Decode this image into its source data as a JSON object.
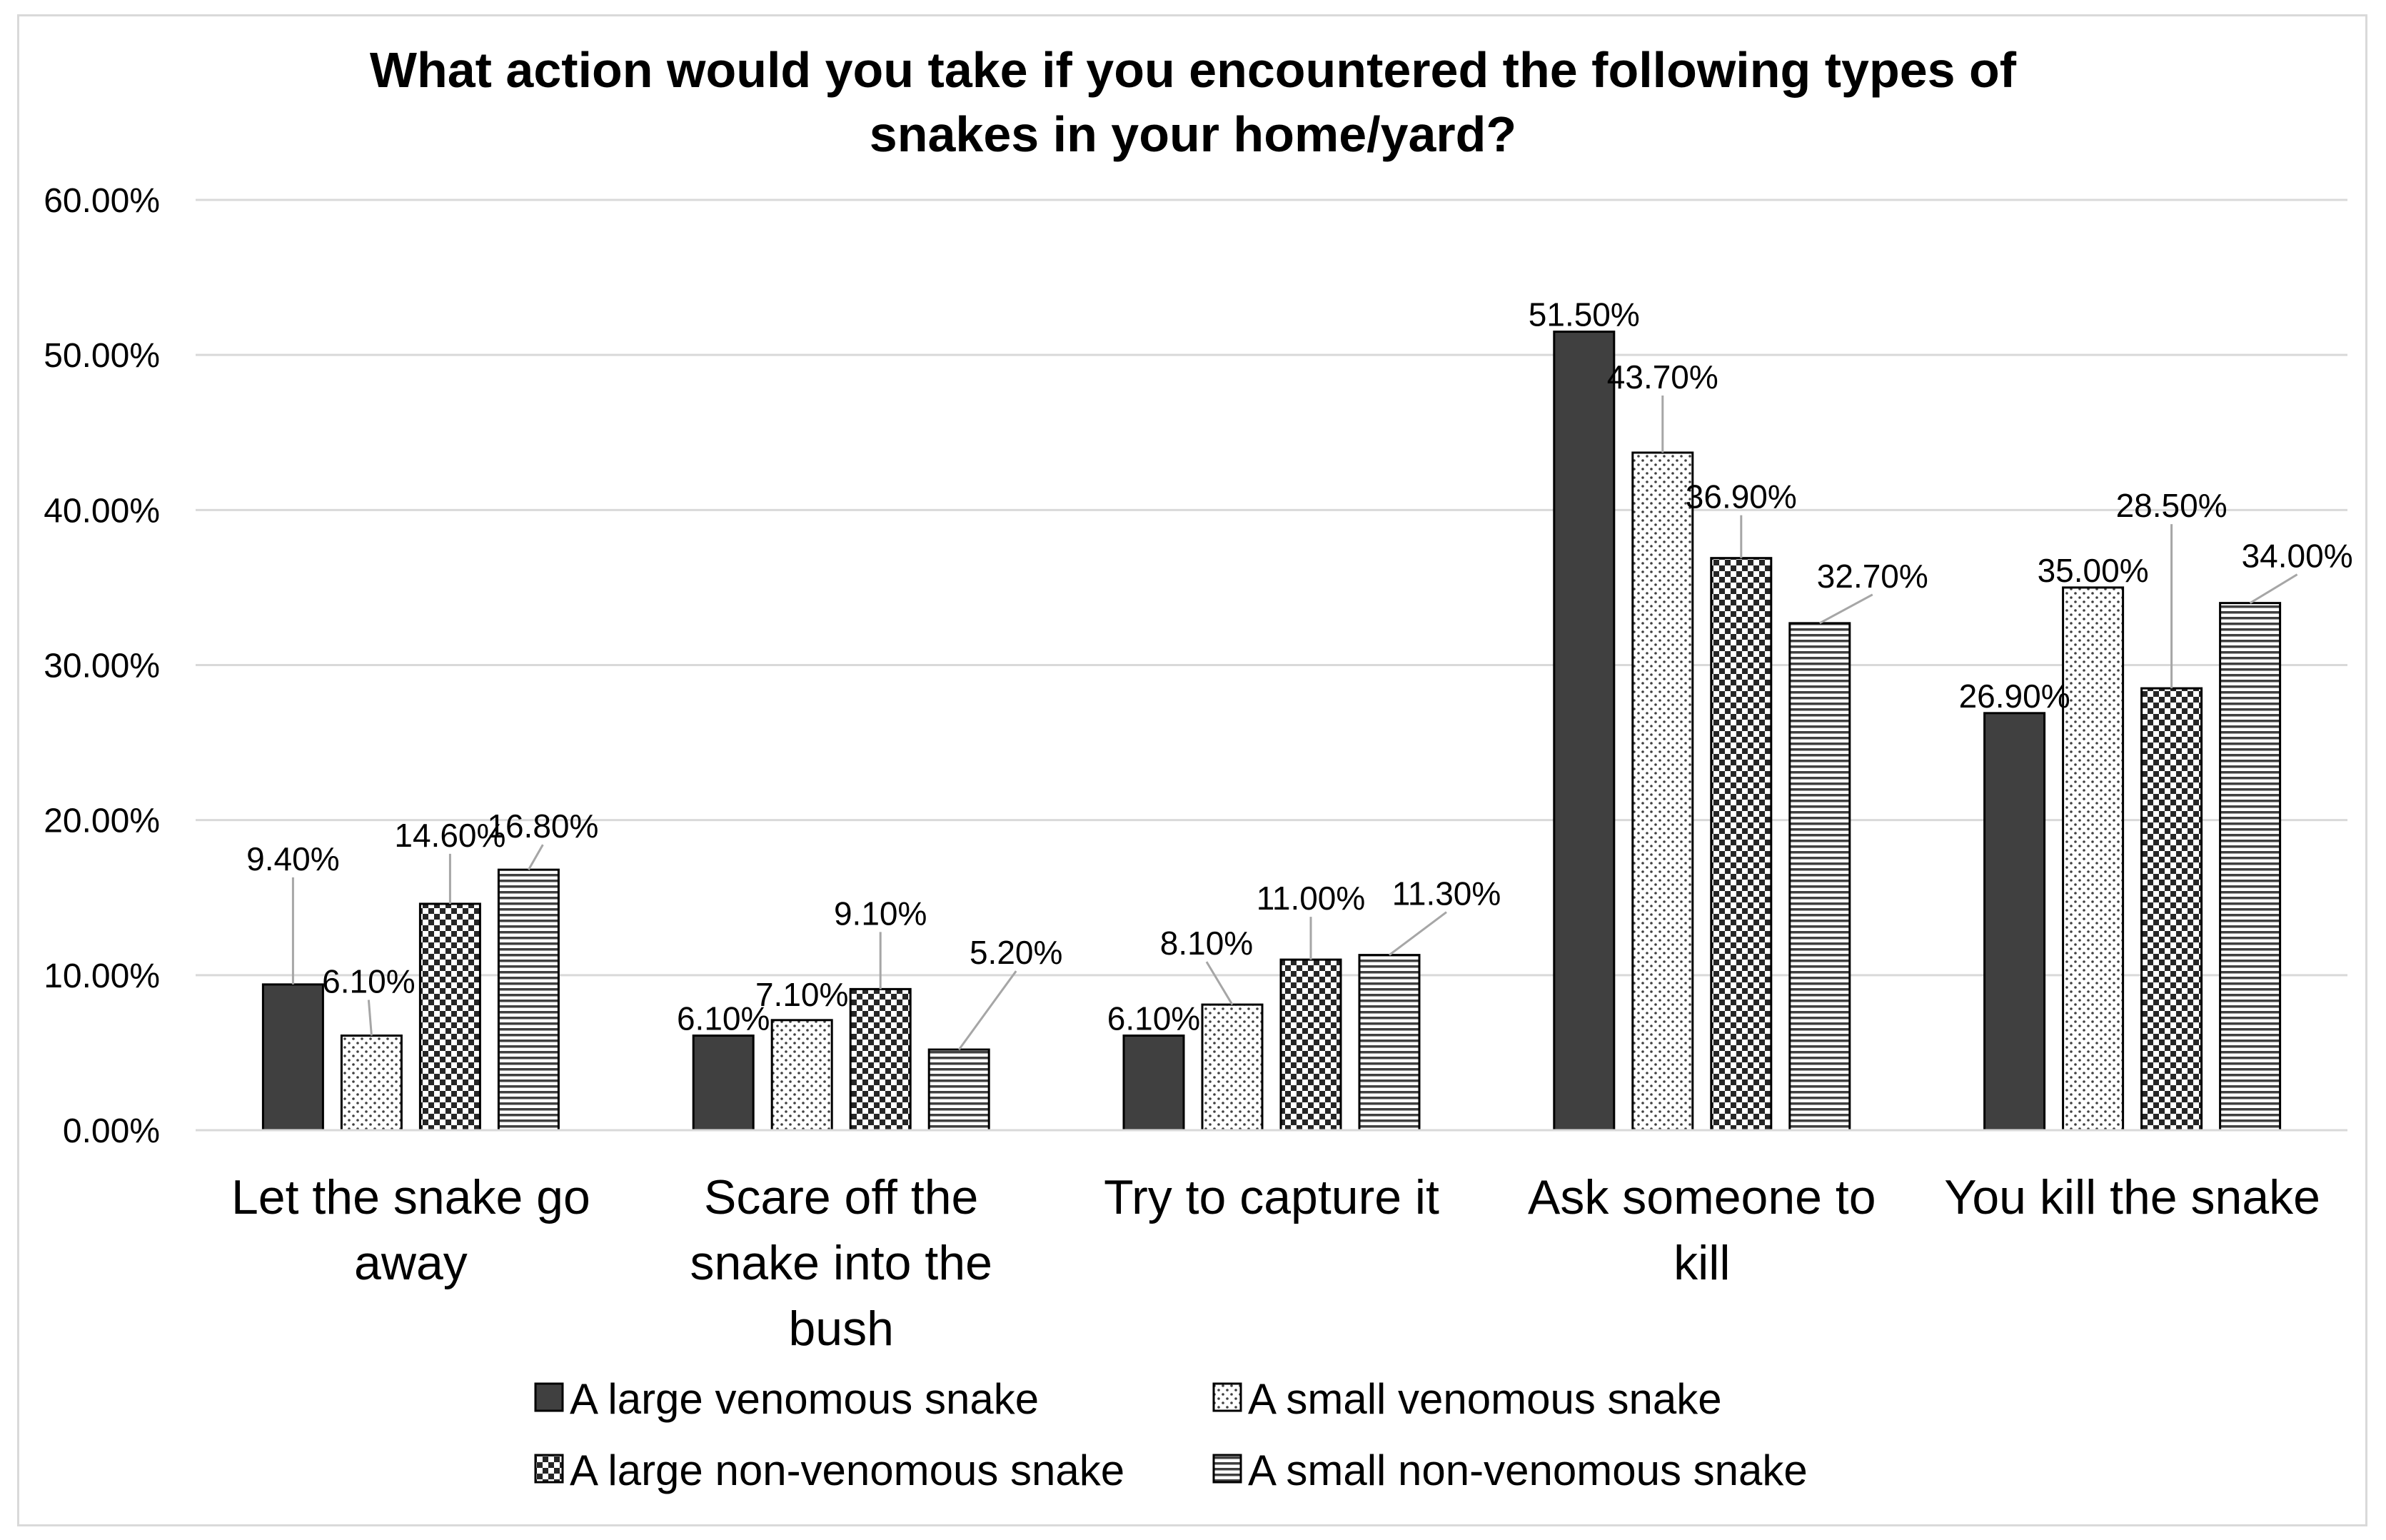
{
  "chart_data": {
    "type": "bar",
    "title_line1": "What action would you take if you encountered the following types of",
    "title_line2": "snakes in your home/yard?",
    "categories": [
      [
        "Let the snake go",
        "away"
      ],
      [
        "Scare off the",
        "snake into the",
        "bush"
      ],
      [
        "Try to capture it"
      ],
      [
        "Ask someone to",
        "kill"
      ],
      [
        "You kill the snake"
      ]
    ],
    "series": [
      {
        "name": "A large venomous snake",
        "pattern": "solid",
        "values": [
          9.4,
          6.1,
          6.1,
          51.5,
          26.9
        ],
        "labels": [
          "9.40%",
          "6.10%",
          "6.10%",
          "51.50%",
          "26.90%"
        ]
      },
      {
        "name": "A small venomous snake",
        "pattern": "dots",
        "values": [
          6.1,
          7.1,
          8.1,
          43.7,
          35.0
        ],
        "labels": [
          "6.10%",
          "7.10%",
          "8.10%",
          "43.70%",
          "35.00%"
        ]
      },
      {
        "name": "A large non-venomous snake",
        "pattern": "checker",
        "values": [
          14.6,
          9.1,
          11.0,
          36.9,
          28.5
        ],
        "labels": [
          "14.60%",
          "9.10%",
          "11.00%",
          "36.90%",
          "28.50%"
        ]
      },
      {
        "name": "A small non-venomous snake",
        "pattern": "hstripes",
        "values": [
          16.8,
          5.2,
          11.3,
          32.7,
          34.0
        ],
        "labels": [
          "16.80%",
          "5.20%",
          "11.30%",
          "32.70%",
          "34.00%"
        ]
      }
    ],
    "y_ticks": [
      "0.00%",
      "10.00%",
      "20.00%",
      "30.00%",
      "40.00%",
      "50.00%",
      "60.00%"
    ],
    "ylim": [
      0,
      60
    ],
    "grid": true,
    "legend_position": "bottom",
    "colors": {
      "dark": "#404040",
      "outline": "#000000",
      "grid": "#d9d9d9",
      "leader": "#a6a6a6"
    }
  }
}
